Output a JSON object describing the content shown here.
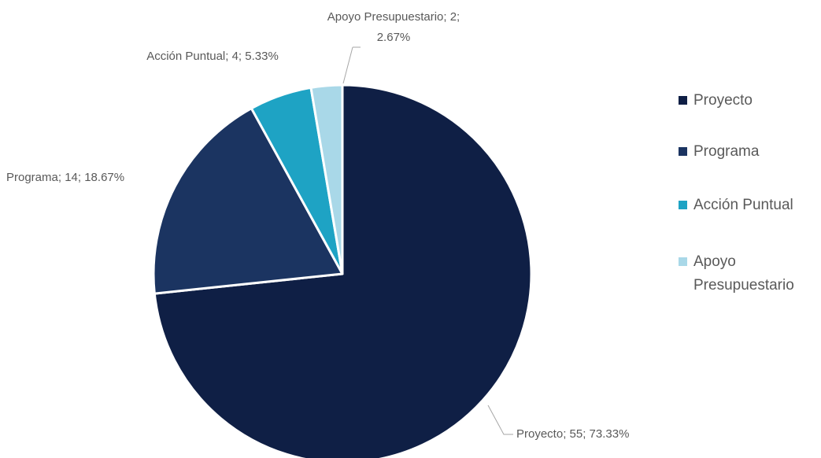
{
  "chart_data": {
    "type": "pie",
    "categories": [
      "Proyecto",
      "Programa",
      "Acción Puntual",
      "Apoyo Presupuestario"
    ],
    "values": [
      55,
      14,
      4,
      2
    ],
    "value_labels": [
      "Proyecto; 55; 73.33%",
      "Programa; 14; 18.67%",
      "Acción Puntual; 4; 5.33%",
      "Apoyo Presupuestario; 2; 2.67%"
    ],
    "colors": [
      "#0f1f45",
      "#1b3461",
      "#1ea3c4",
      "#a9d8e8"
    ],
    "legend": "right"
  }
}
